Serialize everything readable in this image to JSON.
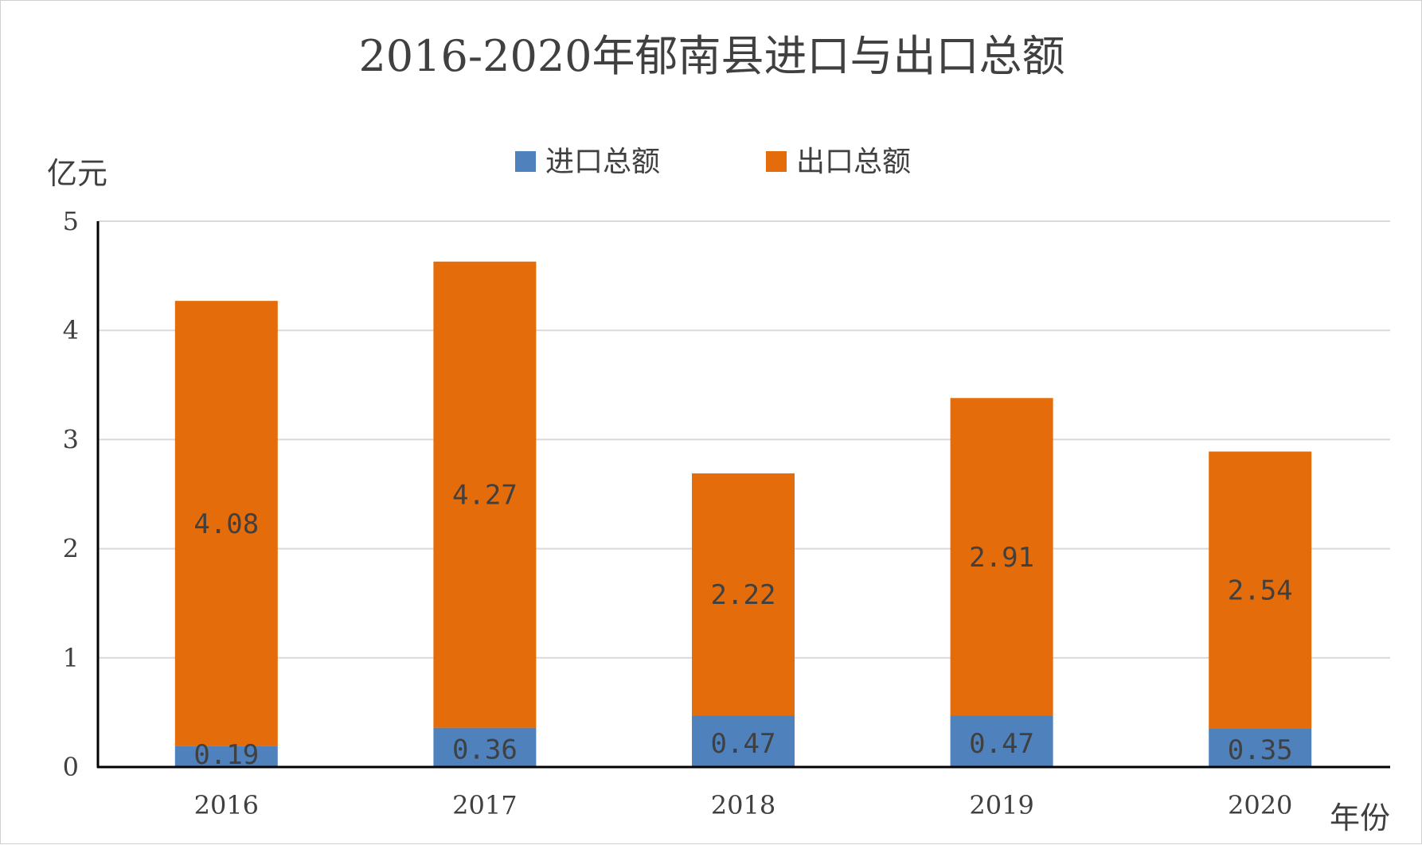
{
  "chart_data": {
    "type": "bar",
    "stacked": true,
    "title": "2016-2020年郁南县进口与出口总额",
    "ylabel": "亿元",
    "xlabel": "年份",
    "categories": [
      "2016",
      "2017",
      "2018",
      "2019",
      "2020"
    ],
    "ylim": [
      0,
      5
    ],
    "yticks": [
      "0",
      "1",
      "2",
      "3",
      "4",
      "5"
    ],
    "grid": true,
    "legend_position": "top",
    "series": [
      {
        "name": "进口总额",
        "color": "#4f81bd",
        "values": [
          0.19,
          0.36,
          0.47,
          0.47,
          0.35
        ],
        "labels": [
          "0.19",
          "0.36",
          "0.47",
          "0.47",
          "0.35"
        ]
      },
      {
        "name": "出口总额",
        "color": "#e46c0a",
        "values": [
          4.08,
          4.27,
          2.22,
          2.91,
          2.54
        ],
        "labels": [
          "4.08",
          "4.27",
          "2.22",
          "2.91",
          "2.54"
        ]
      }
    ]
  }
}
